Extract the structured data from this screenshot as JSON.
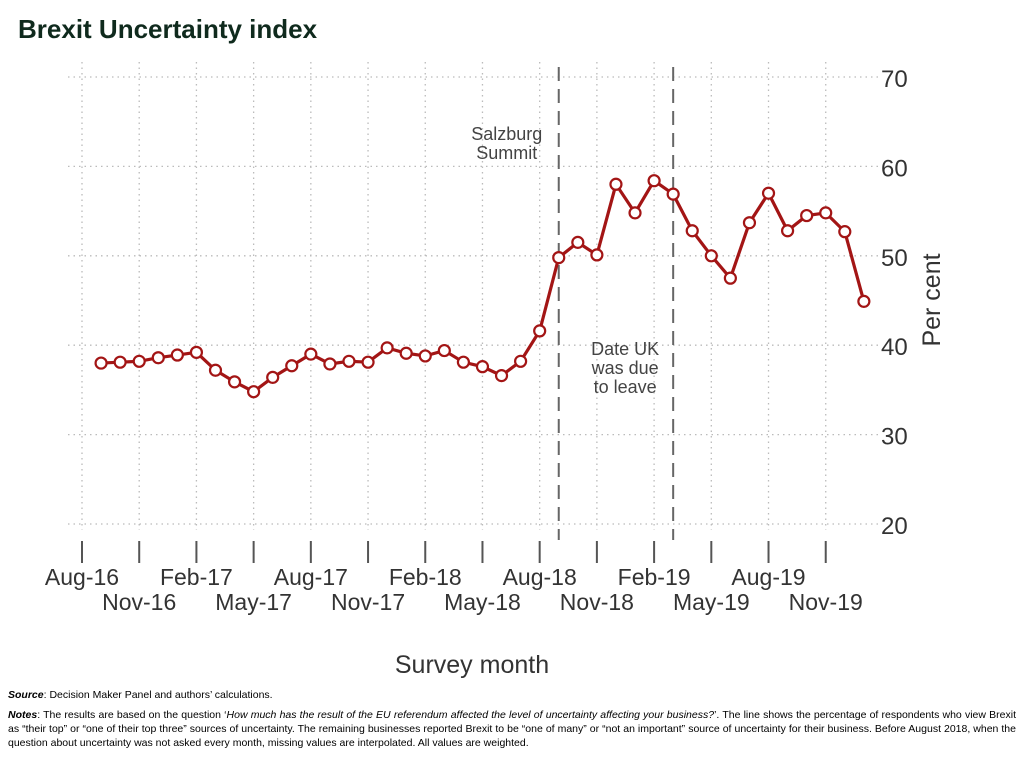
{
  "title": "Brexit Uncertainty index",
  "chart_data": {
    "type": "line",
    "title": "Brexit Uncertainty index",
    "xlabel": "Survey month",
    "ylabel": "Per cent",
    "ylim": [
      20,
      70
    ],
    "yticks": [
      20,
      30,
      40,
      50,
      60,
      70
    ],
    "y_axis_side": "right",
    "grid": "dotted",
    "color": "#a31515",
    "xtick_labels": [
      "Aug-16",
      "Nov-16",
      "Feb-17",
      "May-17",
      "Aug-17",
      "Nov-17",
      "Feb-18",
      "May-18",
      "Aug-18",
      "Nov-18",
      "Feb-19",
      "May-19",
      "Aug-19",
      "Nov-19"
    ],
    "x_start": "Sep-16",
    "x_end": "Jan-20",
    "values": [
      38.0,
      38.1,
      38.2,
      38.6,
      38.9,
      39.2,
      37.2,
      35.9,
      34.8,
      36.4,
      37.7,
      39.0,
      37.9,
      38.2,
      38.1,
      39.7,
      39.1,
      38.8,
      39.4,
      38.1,
      37.6,
      36.6,
      38.2,
      41.6,
      49.8,
      51.5,
      50.1,
      58.0,
      54.8,
      58.4,
      56.9,
      52.8,
      50.0,
      47.5,
      53.7,
      57.0,
      52.8,
      54.5,
      54.8,
      52.7,
      44.9
    ],
    "annotations": [
      {
        "text": [
          "Salzburg",
          "Summit"
        ],
        "at": "Sep-18"
      },
      {
        "text": [
          "Date UK",
          "was due",
          "to leave"
        ],
        "at": "Mar-19"
      }
    ]
  },
  "source_label": "Source",
  "source_text": ": Decision Maker Panel and authors’ calculations.",
  "notes_label": "Notes",
  "notes_pre": ": The results are based on the question ‘",
  "notes_question": "How much has the result of the EU referendum affected the level of uncertainty affecting your business?",
  "notes_post": "’. The line shows the percentage of respondents who view Brexit as “their top” or “one of their top three” sources of uncertainty. The remaining businesses reported Brexit to be “one of many” or “not an important” source of uncertainty for their business. Before August 2018, when the question about uncertainty was not asked every month, missing values are interpolated. All values are weighted."
}
